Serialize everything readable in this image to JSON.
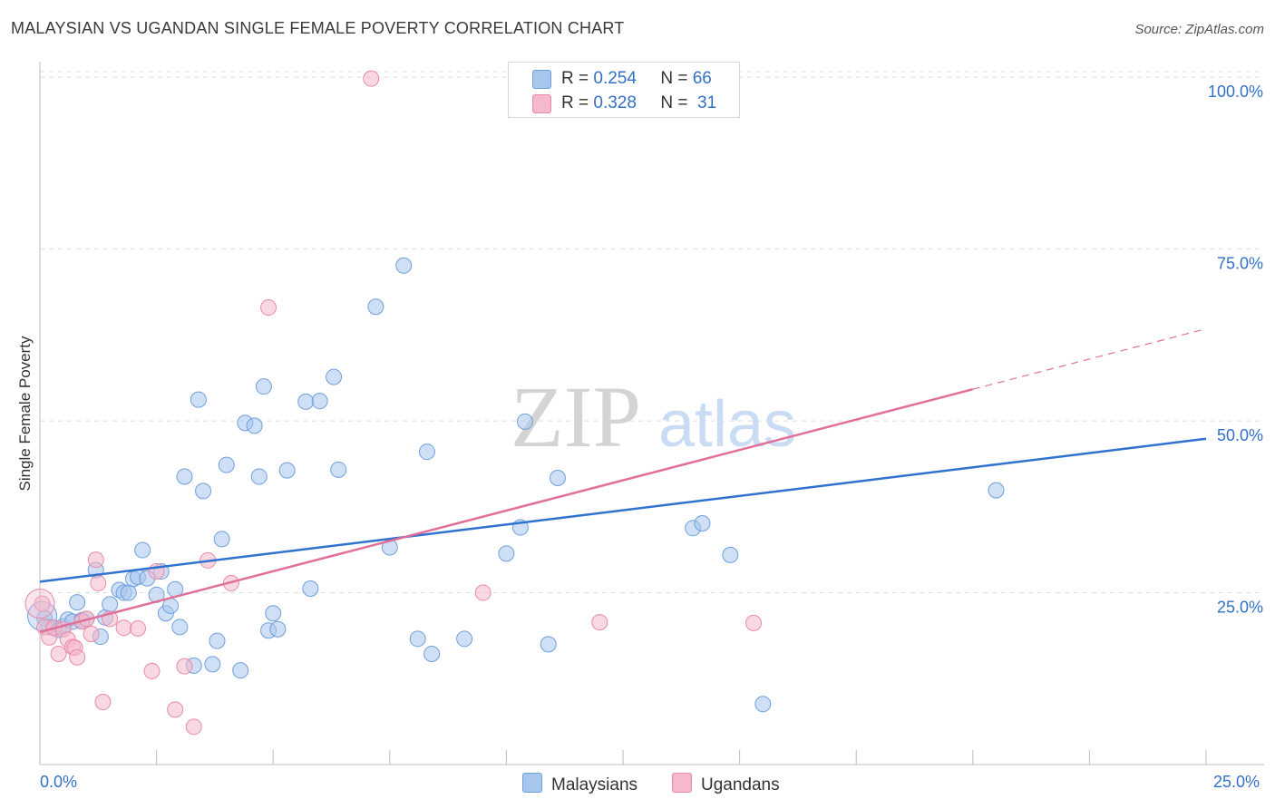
{
  "title": "MALAYSIAN VS UGANDAN SINGLE FEMALE POVERTY CORRELATION CHART",
  "source": "Source: ZipAtlas.com",
  "watermark": {
    "zip": "ZIP",
    "atlas": "atlas"
  },
  "legend": {
    "r_label": "R =",
    "n_label": "N =",
    "malaysians": {
      "r": "0.254",
      "n": "66"
    },
    "ugandans": {
      "r": "0.328",
      "n": "31"
    }
  },
  "bottom_legend": {
    "malaysians": "Malaysians",
    "ugandans": "Ugandans"
  },
  "x_tick_labels": {
    "left": "0.0%",
    "right": "25.0%"
  },
  "colors": {
    "blue_fill": "#a8c6ee",
    "blue_stroke": "#6f9fdc",
    "blue_line": "#2f72d0",
    "pink_fill": "#f6b8cb",
    "pink_stroke": "#e88aa8",
    "pink_line": "#e0709a",
    "grid": "#dedede",
    "axis_text": "#3370c8"
  },
  "chart_data": {
    "type": "scatter",
    "title": "MALAYSIAN VS UGANDAN SINGLE FEMALE POVERTY CORRELATION CHART",
    "xlabel": "",
    "ylabel": "Single Female Poverty",
    "xlim": [
      0,
      25
    ],
    "ylim": [
      0,
      102
    ],
    "y_ticks": [
      {
        "value": 25,
        "label": "25.0%"
      },
      {
        "value": 50,
        "label": "50.0%"
      },
      {
        "value": 75,
        "label": "75.0%"
      },
      {
        "value": 100,
        "label": "100.0%"
      }
    ],
    "series": [
      {
        "name": "Malaysians",
        "color": "#a8c6ee",
        "trend": {
          "x": [
            0,
            25
          ],
          "y": [
            26.6,
            47.4
          ]
        },
        "points": [
          [
            0.1,
            21.3
          ],
          [
            0.2,
            20.0
          ],
          [
            0.3,
            19.9
          ],
          [
            0.4,
            19.6
          ],
          [
            0.5,
            20.1
          ],
          [
            0.6,
            21.1
          ],
          [
            0.7,
            20.8
          ],
          [
            0.8,
            23.6
          ],
          [
            0.9,
            21.0
          ],
          [
            1.0,
            21.2
          ],
          [
            1.2,
            28.3
          ],
          [
            1.3,
            18.6
          ],
          [
            1.4,
            21.4
          ],
          [
            1.5,
            23.3
          ],
          [
            1.7,
            25.4
          ],
          [
            1.8,
            25.0
          ],
          [
            1.9,
            25.0
          ],
          [
            2.0,
            27.0
          ],
          [
            2.1,
            27.3
          ],
          [
            2.2,
            31.2
          ],
          [
            2.3,
            27.1
          ],
          [
            2.5,
            24.7
          ],
          [
            2.6,
            28.1
          ],
          [
            2.7,
            22.0
          ],
          [
            2.8,
            23.1
          ],
          [
            2.9,
            25.5
          ],
          [
            3.0,
            20.0
          ],
          [
            3.1,
            41.9
          ],
          [
            3.3,
            14.4
          ],
          [
            3.4,
            53.1
          ],
          [
            3.5,
            39.8
          ],
          [
            3.7,
            14.6
          ],
          [
            3.8,
            18.0
          ],
          [
            3.9,
            32.8
          ],
          [
            4.0,
            43.6
          ],
          [
            4.3,
            13.7
          ],
          [
            4.4,
            49.7
          ],
          [
            4.6,
            49.3
          ],
          [
            4.7,
            41.9
          ],
          [
            4.8,
            55.0
          ],
          [
            4.9,
            19.5
          ],
          [
            5.0,
            22.0
          ],
          [
            5.1,
            19.7
          ],
          [
            5.3,
            42.8
          ],
          [
            5.7,
            52.8
          ],
          [
            5.8,
            25.6
          ],
          [
            6.0,
            52.9
          ],
          [
            6.3,
            56.4
          ],
          [
            6.4,
            42.9
          ],
          [
            7.2,
            66.6
          ],
          [
            7.5,
            31.6
          ],
          [
            7.8,
            72.6
          ],
          [
            8.1,
            18.3
          ],
          [
            8.3,
            45.5
          ],
          [
            8.4,
            16.1
          ],
          [
            9.1,
            18.3
          ],
          [
            10.0,
            30.7
          ],
          [
            10.3,
            34.5
          ],
          [
            10.4,
            49.9
          ],
          [
            10.9,
            17.5
          ],
          [
            11.1,
            41.7
          ],
          [
            14.0,
            34.4
          ],
          [
            14.2,
            35.1
          ],
          [
            14.8,
            30.5
          ],
          [
            15.5,
            8.8
          ],
          [
            20.5,
            39.9
          ]
        ]
      },
      {
        "name": "Ugandans",
        "color": "#f6b8cb",
        "trend": {
          "x": [
            0,
            20
          ],
          "y": [
            19.3,
            54.6
          ]
        },
        "trend_dashed": {
          "x": [
            20,
            25
          ],
          "y": [
            54.6,
            63.4
          ]
        },
        "points": [
          [
            0.05,
            23.4
          ],
          [
            0.1,
            20.0
          ],
          [
            0.2,
            18.5
          ],
          [
            0.3,
            19.9
          ],
          [
            0.4,
            16.1
          ],
          [
            0.5,
            19.7
          ],
          [
            0.6,
            18.2
          ],
          [
            0.7,
            17.1
          ],
          [
            0.75,
            17.0
          ],
          [
            0.8,
            15.6
          ],
          [
            0.9,
            20.8
          ],
          [
            1.0,
            21.2
          ],
          [
            1.1,
            19.0
          ],
          [
            1.2,
            29.8
          ],
          [
            1.25,
            26.4
          ],
          [
            1.35,
            9.1
          ],
          [
            1.5,
            21.2
          ],
          [
            1.8,
            19.9
          ],
          [
            2.1,
            19.8
          ],
          [
            2.4,
            13.6
          ],
          [
            2.5,
            28.1
          ],
          [
            2.9,
            8.0
          ],
          [
            3.1,
            14.3
          ],
          [
            3.3,
            5.5
          ],
          [
            3.6,
            29.7
          ],
          [
            4.1,
            26.4
          ],
          [
            4.9,
            66.5
          ],
          [
            7.1,
            99.8
          ],
          [
            9.5,
            25.0
          ],
          [
            12.0,
            20.7
          ],
          [
            15.3,
            20.6
          ]
        ]
      }
    ]
  }
}
